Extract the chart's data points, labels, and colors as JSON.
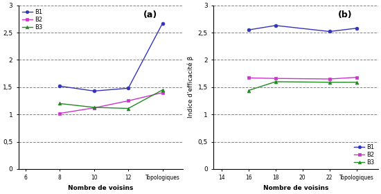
{
  "left": {
    "x_positions": [
      1,
      2,
      3,
      4
    ],
    "x_ticks_pos": [
      0,
      1,
      2,
      3,
      4
    ],
    "x_ticks_labels": [
      "6",
      "8",
      "10",
      "12",
      "Topologiques"
    ],
    "B1": [
      1.52,
      1.43,
      1.48,
      2.67
    ],
    "B2": [
      1.02,
      1.12,
      1.25,
      1.4
    ],
    "B3": [
      1.2,
      1.13,
      1.11,
      1.45
    ],
    "xlabel": "Nombre de voisins",
    "ylabel": "",
    "title": "(a)",
    "ylim": [
      0,
      3
    ],
    "xlim": [
      -0.2,
      4.6
    ],
    "yticks": [
      0,
      0.5,
      1,
      1.5,
      2,
      2.5,
      3
    ],
    "ytick_labels": [
      "0",
      "0,5",
      "1",
      "1,5",
      "2",
      "2,5",
      "3"
    ],
    "color_B1": "#3333bb",
    "color_B2": "#cc33cc",
    "color_B3": "#228822",
    "legend_loc": "upper left"
  },
  "right": {
    "x_positions": [
      1,
      2,
      4,
      5
    ],
    "x_ticks_pos": [
      0,
      1,
      2,
      3,
      4,
      5
    ],
    "x_ticks_labels": [
      "14",
      "16",
      "18",
      "20",
      "22",
      "Topologiques"
    ],
    "B1": [
      2.55,
      2.63,
      2.52,
      2.58
    ],
    "B2": [
      1.67,
      1.66,
      1.65,
      1.68
    ],
    "B3": [
      1.44,
      1.6,
      1.59,
      1.59
    ],
    "xlabel": "Nombre de voisins",
    "ylabel": "Indice d'efficacité β",
    "title": "(b)",
    "ylim": [
      0,
      3
    ],
    "xlim": [
      -0.3,
      5.8
    ],
    "yticks": [
      0,
      0.5,
      1,
      1.5,
      2,
      2.5,
      3
    ],
    "ytick_labels": [
      "0",
      "0,5",
      "1",
      "1,5",
      "2",
      "2,5",
      "3"
    ],
    "color_B1": "#3333bb",
    "color_B2": "#cc33cc",
    "color_B3": "#228822",
    "legend_loc": "lower right"
  }
}
